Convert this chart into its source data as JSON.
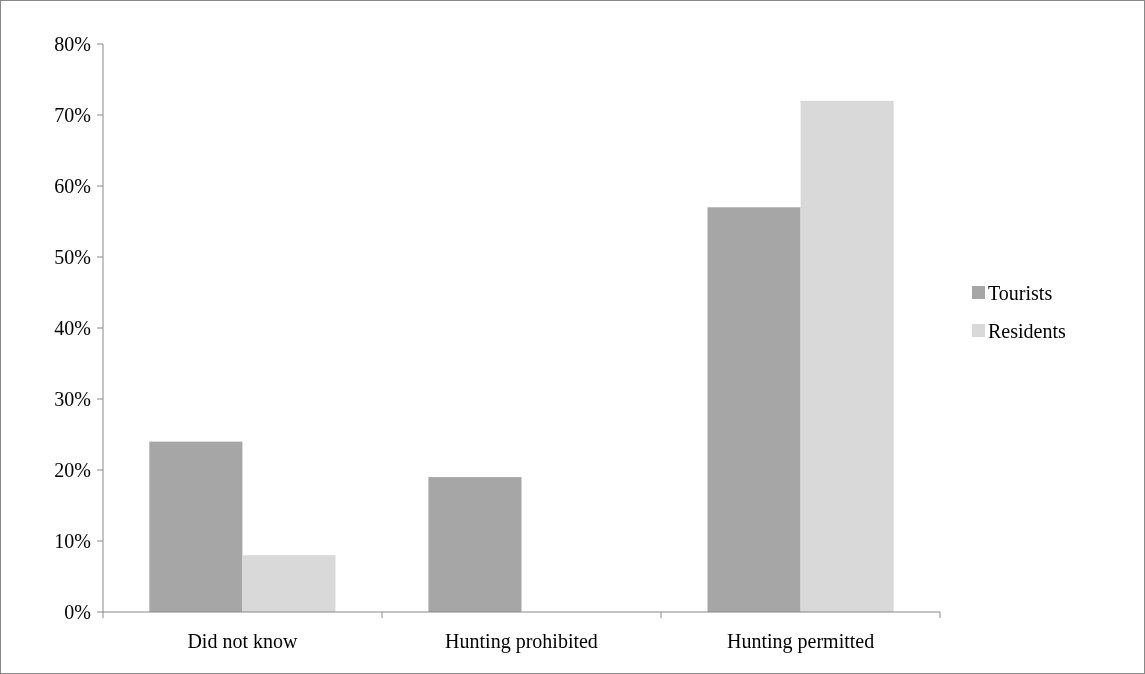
{
  "chart_data": {
    "type": "bar",
    "categories": [
      "Did not know",
      "Hunting prohibited",
      "Hunting permitted"
    ],
    "series": [
      {
        "name": "Tourists",
        "color": "#a6a6a6",
        "values": [
          24,
          19,
          57
        ]
      },
      {
        "name": "Residents",
        "color": "#d9d9d9",
        "values": [
          8,
          0,
          72
        ]
      }
    ],
    "ylim": [
      0,
      80
    ],
    "yticks": [
      {
        "value": 0,
        "label": "0%"
      },
      {
        "value": 10,
        "label": "10%"
      },
      {
        "value": 20,
        "label": "20%"
      },
      {
        "value": 30,
        "label": "30%"
      },
      {
        "value": 40,
        "label": "40%"
      },
      {
        "value": 50,
        "label": "50%"
      },
      {
        "value": 60,
        "label": "60%"
      },
      {
        "value": 70,
        "label": "70%"
      },
      {
        "value": 80,
        "label": "80%"
      }
    ],
    "grid": false,
    "legend": "right"
  }
}
